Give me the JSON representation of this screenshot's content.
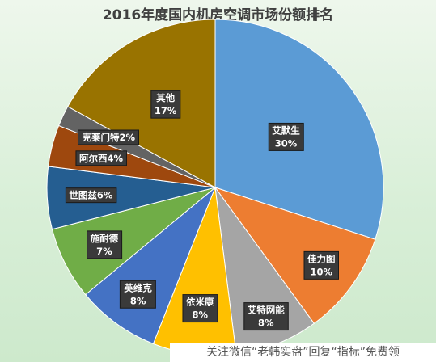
{
  "chart_data": {
    "type": "pie",
    "title": "2016年度国内机房空调市场份额排名",
    "slices": [
      {
        "label": "艾默生",
        "value": 30,
        "value_text": "30%",
        "color": "#5b9bd5"
      },
      {
        "label": "佳力图",
        "value": 10,
        "value_text": "10%",
        "color": "#ed7d31"
      },
      {
        "label": "艾特网能",
        "value": 8,
        "value_text": "8%",
        "color": "#a5a5a5"
      },
      {
        "label": "依米康",
        "value": 8,
        "value_text": "8%",
        "color": "#ffc000"
      },
      {
        "label": "英维克",
        "value": 8,
        "value_text": "8%",
        "color": "#4472c4"
      },
      {
        "label": "施耐德",
        "value": 7,
        "value_text": "7%",
        "color": "#70ad47"
      },
      {
        "label": "世图兹",
        "value": 6,
        "value_text": "6%",
        "color": "#255e91"
      },
      {
        "label": "阿尔西",
        "value": 4,
        "value_text": "4%",
        "color": "#9e480e"
      },
      {
        "label": "克莱门特",
        "value": 2,
        "value_text": "2%",
        "color": "#636363"
      },
      {
        "label": "其他",
        "value": 17,
        "value_text": "17%",
        "color": "#997300"
      }
    ],
    "legend": "none"
  },
  "watermark": {
    "text": "关注微信“老韩实盘”回复“指标”免费领"
  }
}
